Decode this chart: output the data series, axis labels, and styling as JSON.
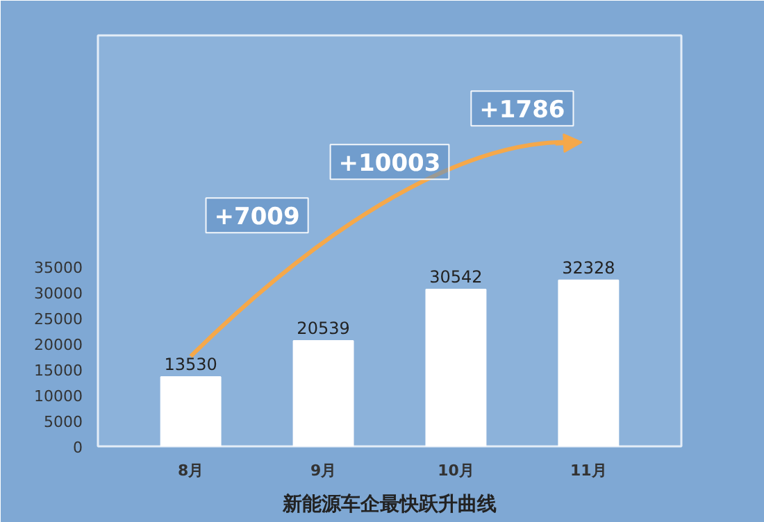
{
  "chart_data": {
    "type": "bar",
    "title": "新能源车企最快跃升曲线",
    "categories": [
      "8月",
      "9月",
      "10月",
      "11月"
    ],
    "values": [
      13530,
      20539,
      30542,
      32328
    ],
    "color": "#ffffff",
    "ylim": [
      0,
      80000
    ],
    "yticks": [
      0,
      5000,
      10000,
      15000,
      20000,
      25000,
      30000,
      35000
    ],
    "data_labels": true,
    "grid": false,
    "annotations": [
      "+7009",
      "+10003",
      "+1786"
    ]
  }
}
